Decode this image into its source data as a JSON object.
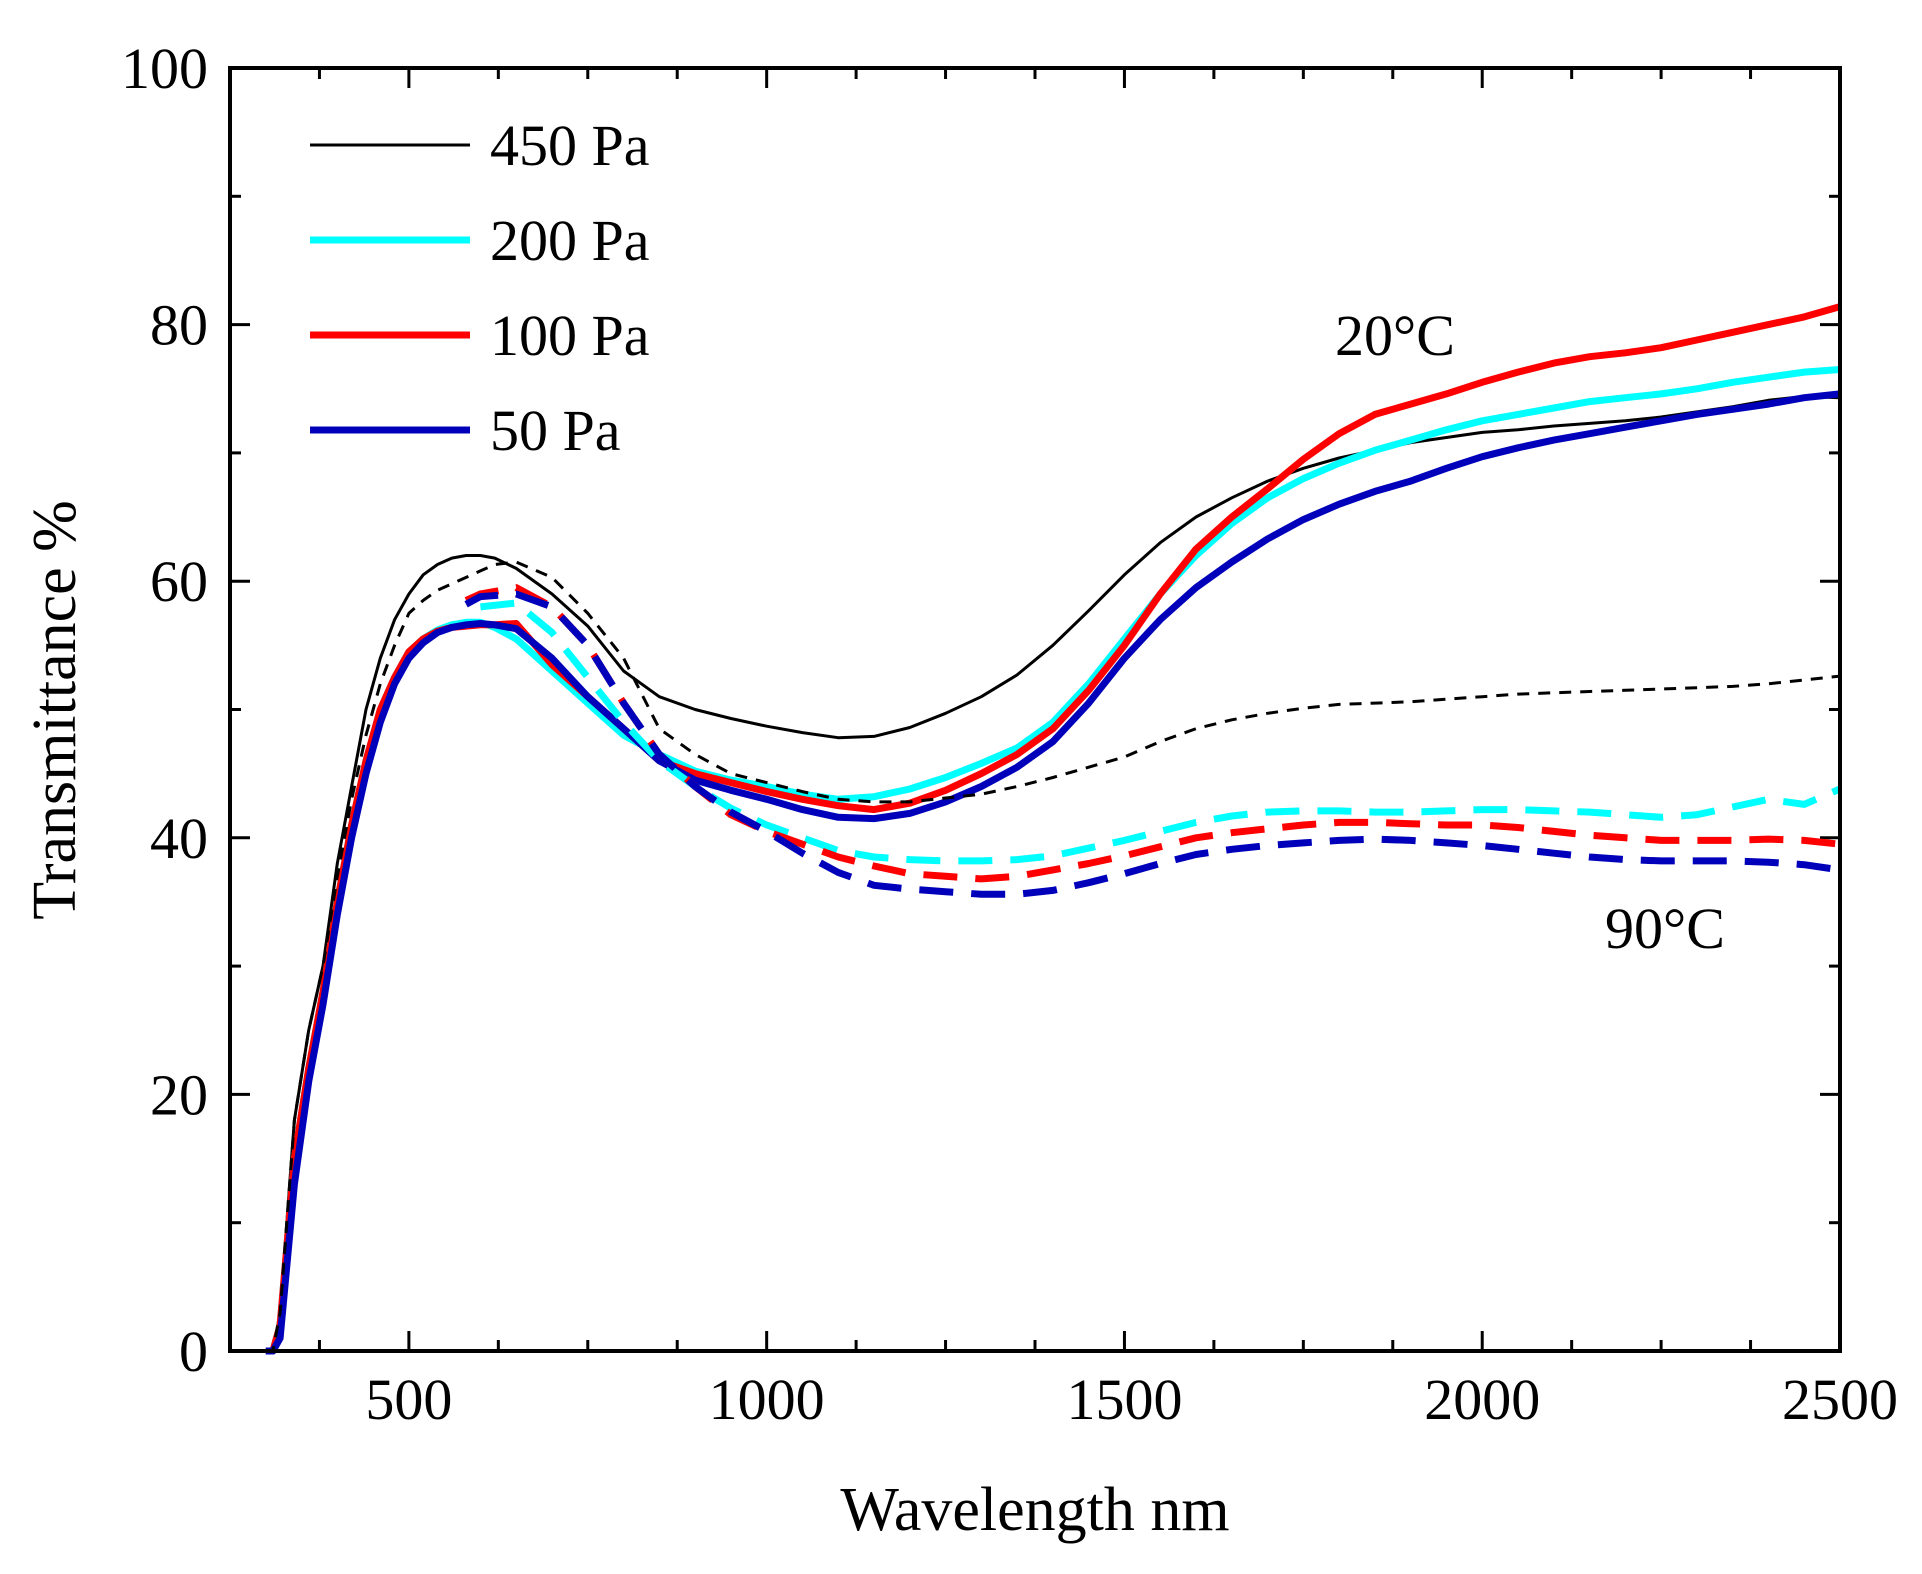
{
  "chart_data": {
    "type": "line",
    "title": "",
    "xlabel": "Wavelength nm",
    "ylabel": "Transmittance %",
    "xlim": [
      250,
      2500
    ],
    "ylim": [
      0,
      100
    ],
    "x_ticks": [
      500,
      1000,
      1500,
      2000,
      2500
    ],
    "y_ticks": [
      0,
      20,
      40,
      60,
      80,
      100
    ],
    "x_ticks_text": [
      "500",
      "1000",
      "1500",
      "2000",
      "2500"
    ],
    "y_ticks_text": [
      "0",
      "20",
      "40",
      "60",
      "80",
      "100"
    ],
    "legend": [
      "450 Pa",
      "200 Pa",
      "100 Pa",
      "50 Pa"
    ],
    "annotations": [
      "20°C",
      "90°C"
    ],
    "series": [
      {
        "name": "450 Pa",
        "condition": "20°C",
        "color": "#000000",
        "style": "solid",
        "x": [
          300,
          310,
          320,
          340,
          360,
          380,
          400,
          420,
          440,
          460,
          480,
          500,
          520,
          540,
          560,
          580,
          600,
          620,
          650,
          700,
          750,
          800,
          850,
          900,
          950,
          1000,
          1050,
          1100,
          1150,
          1200,
          1250,
          1300,
          1350,
          1400,
          1450,
          1500,
          1550,
          1600,
          1650,
          1700,
          1750,
          1800,
          1850,
          1900,
          1950,
          2000,
          2050,
          2100,
          2150,
          2200,
          2250,
          2300,
          2350,
          2400,
          2450,
          2500
        ],
        "y": [
          0,
          0,
          3,
          18,
          25,
          30,
          38,
          44,
          50,
          54,
          57,
          59,
          60.5,
          61.3,
          61.8,
          62,
          62,
          61.8,
          61,
          59,
          56.5,
          53,
          51,
          50,
          49.3,
          48.7,
          48.2,
          47.8,
          47.9,
          48.6,
          49.7,
          51,
          52.7,
          55,
          57.7,
          60.5,
          63,
          65,
          66.5,
          67.8,
          68.8,
          69.6,
          70.2,
          70.8,
          71.2,
          71.6,
          71.8,
          72.1,
          72.3,
          72.5,
          72.8,
          73.2,
          73.6,
          74.1,
          74.4,
          74.3
        ]
      },
      {
        "name": "200 Pa",
        "condition": "20°C",
        "color": "#00ffff",
        "style": "solid",
        "x": [
          300,
          310,
          320,
          340,
          360,
          380,
          400,
          420,
          440,
          460,
          480,
          500,
          520,
          540,
          560,
          580,
          600,
          620,
          650,
          700,
          750,
          800,
          850,
          900,
          950,
          1000,
          1050,
          1100,
          1150,
          1200,
          1250,
          1300,
          1350,
          1400,
          1450,
          1500,
          1550,
          1600,
          1650,
          1700,
          1750,
          1800,
          1850,
          1900,
          1950,
          2000,
          2050,
          2100,
          2150,
          2200,
          2250,
          2300,
          2350,
          2400,
          2450,
          2500
        ],
        "y": [
          0,
          0,
          2,
          15,
          22,
          28,
          35,
          41,
          46,
          50,
          52.5,
          54.5,
          55.5,
          56.2,
          56.6,
          56.8,
          56.8,
          56.4,
          55.5,
          53,
          50.5,
          48,
          46.5,
          45.2,
          44.5,
          44,
          43.4,
          43,
          43.2,
          43.8,
          44.7,
          45.8,
          47,
          49,
          52,
          55.5,
          59,
          62,
          64.5,
          66.5,
          68,
          69.2,
          70.2,
          71,
          71.8,
          72.5,
          73,
          73.5,
          74,
          74.3,
          74.6,
          75,
          75.5,
          75.9,
          76.3,
          76.5
        ]
      },
      {
        "name": "100 Pa",
        "condition": "20°C",
        "color": "#ff0000",
        "style": "solid",
        "x": [
          300,
          310,
          320,
          340,
          360,
          380,
          400,
          420,
          440,
          460,
          480,
          500,
          520,
          540,
          560,
          580,
          600,
          620,
          650,
          700,
          750,
          800,
          850,
          900,
          950,
          1000,
          1050,
          1100,
          1150,
          1200,
          1250,
          1300,
          1350,
          1400,
          1450,
          1500,
          1550,
          1600,
          1650,
          1700,
          1750,
          1800,
          1850,
          1900,
          1950,
          2000,
          2050,
          2100,
          2150,
          2200,
          2250,
          2300,
          2350,
          2400,
          2450,
          2500
        ],
        "y": [
          0,
          0,
          2,
          15,
          22,
          28,
          35,
          41,
          46,
          50,
          52.5,
          54.5,
          55.5,
          56.1,
          56.4,
          56.5,
          56.6,
          56.6,
          56.7,
          53.5,
          51,
          48.5,
          46,
          45,
          44.3,
          43.6,
          43,
          42.5,
          42.2,
          42.7,
          43.7,
          45,
          46.5,
          48.5,
          51.5,
          55,
          59,
          62.5,
          65,
          67.2,
          69.5,
          71.5,
          73,
          73.8,
          74.6,
          75.5,
          76.3,
          77,
          77.5,
          77.8,
          78.2,
          78.8,
          79.4,
          80,
          80.6,
          81.4
        ]
      },
      {
        "name": "50 Pa",
        "condition": "20°C",
        "color": "#0000bb",
        "style": "solid",
        "x": [
          300,
          310,
          320,
          340,
          360,
          380,
          400,
          420,
          440,
          460,
          480,
          500,
          520,
          540,
          560,
          580,
          600,
          620,
          650,
          700,
          750,
          800,
          850,
          900,
          950,
          1000,
          1050,
          1100,
          1150,
          1200,
          1250,
          1300,
          1350,
          1400,
          1450,
          1500,
          1550,
          1600,
          1650,
          1700,
          1750,
          1800,
          1850,
          1900,
          1950,
          2000,
          2050,
          2100,
          2150,
          2200,
          2250,
          2300,
          2350,
          2400,
          2450,
          2500
        ],
        "y": [
          0,
          0,
          1,
          13,
          21,
          27,
          34,
          40,
          45,
          49,
          52,
          54,
          55.2,
          56,
          56.4,
          56.6,
          56.7,
          56.6,
          56.3,
          54,
          51,
          48.5,
          46,
          44.5,
          43.7,
          43,
          42.2,
          41.6,
          41.5,
          41.9,
          42.8,
          44,
          45.5,
          47.5,
          50.5,
          54,
          57,
          59.5,
          61.5,
          63.3,
          64.8,
          66,
          67,
          67.8,
          68.8,
          69.7,
          70.4,
          71,
          71.5,
          72,
          72.5,
          73,
          73.4,
          73.8,
          74.3,
          74.6
        ]
      },
      {
        "name": "450 Pa",
        "condition": "90°C",
        "color": "#000000",
        "style": "dashed",
        "x": [
          300,
          310,
          320,
          340,
          360,
          380,
          400,
          420,
          440,
          460,
          480,
          500,
          520,
          540,
          560,
          580,
          600,
          620,
          650,
          700,
          750,
          800,
          850,
          900,
          950,
          1000,
          1050,
          1100,
          1150,
          1200,
          1250,
          1300,
          1350,
          1400,
          1450,
          1500,
          1550,
          1600,
          1650,
          1700,
          1750,
          1800,
          1850,
          1900,
          1950,
          2000,
          2050,
          2100,
          2150,
          2200,
          2250,
          2300,
          2350,
          2400,
          2450,
          2500
        ],
        "y": [
          0,
          0,
          3,
          18,
          25,
          30,
          37,
          43,
          48,
          52,
          55,
          57.5,
          58.5,
          59.3,
          59.8,
          60.3,
          60.8,
          61.3,
          61.5,
          60.3,
          57.5,
          54,
          48.5,
          46.5,
          45,
          44.3,
          43.6,
          43,
          42.8,
          42.8,
          43.1,
          43.4,
          44,
          44.7,
          45.5,
          46.3,
          47.5,
          48.5,
          49.2,
          49.7,
          50.1,
          50.4,
          50.5,
          50.6,
          50.8,
          51,
          51.2,
          51.3,
          51.4,
          51.5,
          51.6,
          51.7,
          51.8,
          52,
          52.3,
          52.6
        ]
      },
      {
        "name": "200 Pa",
        "condition": "90°C",
        "color": "#00ffff",
        "style": "dashed",
        "x": [
          600,
          650,
          700,
          750,
          800,
          850,
          900,
          950,
          1000,
          1050,
          1100,
          1150,
          1200,
          1250,
          1300,
          1350,
          1400,
          1450,
          1500,
          1550,
          1600,
          1650,
          1700,
          1750,
          1800,
          1850,
          1900,
          1950,
          2000,
          2050,
          2100,
          2150,
          2200,
          2250,
          2300,
          2350,
          2400,
          2450,
          2500
        ],
        "y": [
          58,
          58.3,
          56,
          52.5,
          49,
          46,
          44,
          42.3,
          41,
          40,
          39,
          38.5,
          38.3,
          38.2,
          38.2,
          38.3,
          38.6,
          39.2,
          39.8,
          40.5,
          41.2,
          41.7,
          42,
          42.1,
          42.1,
          42,
          42,
          42.1,
          42.2,
          42.2,
          42.1,
          42,
          41.8,
          41.6,
          41.8,
          42.4,
          43,
          42.6,
          43.8
        ]
      },
      {
        "name": "100 Pa",
        "condition": "90°C",
        "color": "#ff0000",
        "style": "dashed",
        "x": [
          580,
          600,
          650,
          700,
          750,
          800,
          850,
          900,
          950,
          1000,
          1050,
          1100,
          1150,
          1200,
          1250,
          1300,
          1350,
          1400,
          1450,
          1500,
          1550,
          1600,
          1650,
          1700,
          1750,
          1800,
          1850,
          1900,
          1950,
          2000,
          2050,
          2100,
          2150,
          2200,
          2250,
          2300,
          2350,
          2400,
          2450,
          2500
        ],
        "y": [
          58.5,
          59,
          59.5,
          58,
          55,
          50.5,
          46.5,
          44,
          41.8,
          40.5,
          39.5,
          38.5,
          37.8,
          37.2,
          37,
          36.8,
          37,
          37.5,
          38,
          38.6,
          39.3,
          40,
          40.4,
          40.7,
          41,
          41.2,
          41.2,
          41.1,
          41,
          41,
          40.8,
          40.5,
          40.2,
          40,
          39.8,
          39.8,
          39.8,
          39.9,
          39.8,
          39.5
        ]
      },
      {
        "name": "50 Pa",
        "condition": "90°C",
        "color": "#0000bb",
        "style": "dashed",
        "x": [
          580,
          600,
          650,
          700,
          750,
          800,
          850,
          900,
          950,
          1000,
          1050,
          1100,
          1150,
          1200,
          1250,
          1300,
          1350,
          1400,
          1450,
          1500,
          1550,
          1600,
          1650,
          1700,
          1750,
          1800,
          1850,
          1900,
          1950,
          2000,
          2050,
          2100,
          2150,
          2200,
          2250,
          2300,
          2350,
          2400,
          2450,
          2500
        ],
        "y": [
          58.2,
          58.8,
          59,
          58,
          55,
          50.5,
          46.5,
          44,
          42,
          40.5,
          38.8,
          37.3,
          36.3,
          36,
          35.8,
          35.6,
          35.6,
          35.9,
          36.5,
          37.2,
          38,
          38.7,
          39.1,
          39.4,
          39.6,
          39.8,
          39.9,
          39.8,
          39.6,
          39.4,
          39.1,
          38.8,
          38.5,
          38.3,
          38.2,
          38.2,
          38.2,
          38.1,
          37.9,
          37.5
        ]
      }
    ]
  }
}
